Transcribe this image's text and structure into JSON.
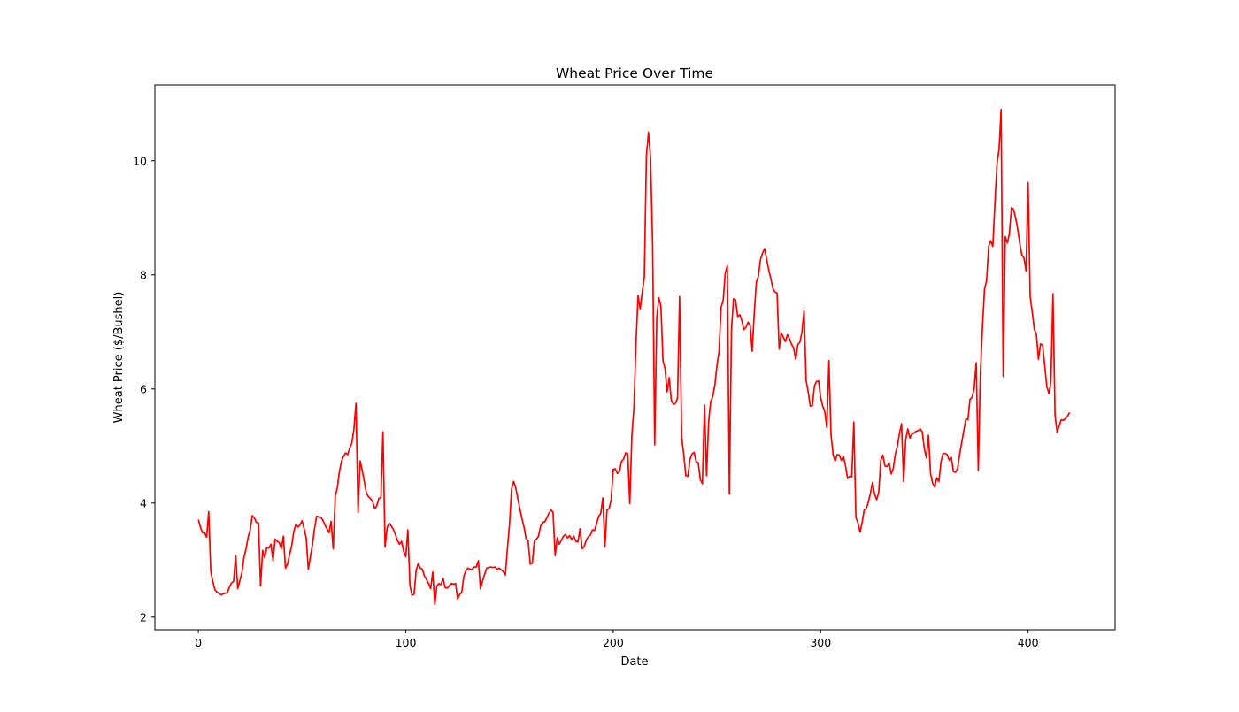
{
  "chart_data": {
    "type": "line",
    "title": "Wheat Price Over Time",
    "xlabel": "Date",
    "ylabel": "Wheat Price ($/Bushel)",
    "xlim": [
      -20.95,
      441.95
    ],
    "ylim": [
      1.78,
      11.33
    ],
    "xticks": [
      0,
      100,
      200,
      300,
      400
    ],
    "yticks": [
      2,
      4,
      6,
      8,
      10
    ],
    "grid": false,
    "legend": "none",
    "series": [
      {
        "color": "#ff0000",
        "x": [
          0,
          1,
          2,
          3,
          4,
          5,
          6,
          7,
          8,
          9,
          10,
          11,
          12,
          13,
          14,
          15,
          16,
          17,
          18,
          19,
          20,
          21,
          22,
          23,
          24,
          25,
          26,
          27,
          28,
          29,
          30,
          31,
          32,
          33,
          34,
          35,
          36,
          37,
          38,
          39,
          40,
          41,
          42,
          43,
          44,
          45,
          46,
          47,
          48,
          49,
          50,
          51,
          52,
          53,
          54,
          55,
          56,
          57,
          58,
          59,
          60,
          61,
          62,
          63,
          64,
          65,
          66,
          67,
          68,
          69,
          70,
          71,
          72,
          73,
          74,
          75,
          76,
          77,
          78,
          79,
          80,
          81,
          82,
          83,
          84,
          85,
          86,
          87,
          88,
          89,
          90,
          91,
          92,
          93,
          94,
          95,
          96,
          97,
          98,
          99,
          100,
          101,
          102,
          103,
          104,
          105,
          106,
          107,
          108,
          109,
          110,
          111,
          112,
          113,
          114,
          115,
          116,
          117,
          118,
          119,
          120,
          121,
          122,
          123,
          124,
          125,
          126,
          127,
          128,
          129,
          130,
          131,
          132,
          133,
          134,
          135,
          136,
          137,
          138,
          139,
          140,
          141,
          142,
          143,
          144,
          145,
          146,
          147,
          148,
          149,
          150,
          151,
          152,
          153,
          154,
          155,
          156,
          157,
          158,
          159,
          160,
          161,
          162,
          163,
          164,
          165,
          166,
          167,
          168,
          169,
          170,
          171,
          172,
          173,
          174,
          175,
          176,
          177,
          178,
          179,
          180,
          181,
          182,
          183,
          184,
          185,
          186,
          187,
          188,
          189,
          190,
          191,
          192,
          193,
          194,
          195,
          196,
          197,
          198,
          199,
          200,
          201,
          202,
          203,
          204,
          205,
          206,
          207,
          208,
          209,
          210,
          211,
          212,
          213,
          214,
          215,
          216,
          217,
          218,
          219,
          220,
          221,
          222,
          223,
          224,
          225,
          226,
          227,
          228,
          229,
          230,
          231,
          232,
          233,
          234,
          235,
          236,
          237,
          238,
          239,
          240,
          241,
          242,
          243,
          244,
          245,
          246,
          247,
          248,
          249,
          250,
          251,
          252,
          253,
          254,
          255,
          256,
          257,
          258,
          259,
          260,
          261,
          262,
          263,
          264,
          265,
          266,
          267,
          268,
          269,
          270,
          271,
          272,
          273,
          274,
          275,
          276,
          277,
          278,
          279,
          280,
          281,
          282,
          283,
          284,
          285,
          286,
          287,
          288,
          289,
          290,
          291,
          292,
          293,
          294,
          295,
          296,
          297,
          298,
          299,
          300,
          301,
          302,
          303,
          304,
          305,
          306,
          307,
          308,
          309,
          310,
          311,
          312,
          313,
          314,
          315,
          316,
          317,
          318,
          319,
          320,
          321,
          322,
          323,
          324,
          325,
          326,
          327,
          328,
          329,
          330,
          331,
          332,
          333,
          334,
          335,
          336,
          337,
          338,
          339,
          340,
          341,
          342,
          343,
          344,
          345,
          346,
          347,
          348,
          349,
          350,
          351,
          352,
          353,
          354,
          355,
          356,
          357,
          358,
          359,
          360,
          361,
          362,
          363,
          364,
          365,
          366,
          367,
          368,
          369,
          370,
          371,
          372,
          373,
          374,
          375,
          376,
          377,
          378,
          379,
          380,
          381,
          382,
          383,
          384,
          385,
          386,
          387,
          388,
          389,
          390,
          391,
          392,
          393,
          394,
          395,
          396,
          397,
          398,
          399,
          400,
          401,
          402,
          403,
          404,
          405,
          406,
          407,
          408,
          409,
          410,
          411,
          412,
          413,
          414,
          415,
          416,
          417,
          418,
          419,
          420
        ],
        "y": [
          3.71,
          3.58,
          3.48,
          3.49,
          3.4,
          3.85,
          2.8,
          2.62,
          2.48,
          2.44,
          2.42,
          2.39,
          2.41,
          2.42,
          2.43,
          2.53,
          2.6,
          2.63,
          3.08,
          2.5,
          2.64,
          2.78,
          3.05,
          3.2,
          3.4,
          3.53,
          3.78,
          3.74,
          3.66,
          3.65,
          2.55,
          3.17,
          3.05,
          3.22,
          3.21,
          3.28,
          2.99,
          3.37,
          3.33,
          3.31,
          3.2,
          3.42,
          2.86,
          2.93,
          3.1,
          3.25,
          3.5,
          3.63,
          3.58,
          3.62,
          3.69,
          3.55,
          3.39,
          2.84,
          3.06,
          3.27,
          3.55,
          3.77,
          3.76,
          3.75,
          3.7,
          3.62,
          3.55,
          3.48,
          3.68,
          3.2,
          4.12,
          4.27,
          4.55,
          4.73,
          4.82,
          4.88,
          4.85,
          4.97,
          5.05,
          5.3,
          5.75,
          3.84,
          4.74,
          4.57,
          4.38,
          4.18,
          4.11,
          4.08,
          4.03,
          3.9,
          3.95,
          4.08,
          4.1,
          5.25,
          3.23,
          3.57,
          3.65,
          3.6,
          3.54,
          3.45,
          3.34,
          3.28,
          3.33,
          3.15,
          3.06,
          3.53,
          2.56,
          2.39,
          2.4,
          2.82,
          2.94,
          2.86,
          2.84,
          2.72,
          2.66,
          2.59,
          2.5,
          2.79,
          2.22,
          2.55,
          2.59,
          2.57,
          2.68,
          2.52,
          2.51,
          2.55,
          2.59,
          2.58,
          2.59,
          2.32,
          2.4,
          2.44,
          2.72,
          2.82,
          2.86,
          2.84,
          2.84,
          2.88,
          2.88,
          2.99,
          2.5,
          2.63,
          2.75,
          2.86,
          2.87,
          2.88,
          2.87,
          2.88,
          2.84,
          2.86,
          2.83,
          2.8,
          2.74,
          3.2,
          3.62,
          4.25,
          4.38,
          4.27,
          4.08,
          3.9,
          3.73,
          3.58,
          3.38,
          3.34,
          2.93,
          2.95,
          3.34,
          3.37,
          3.42,
          3.6,
          3.67,
          3.67,
          3.74,
          3.82,
          3.88,
          3.84,
          3.08,
          3.39,
          3.28,
          3.35,
          3.42,
          3.45,
          3.39,
          3.43,
          3.36,
          3.42,
          3.33,
          3.32,
          3.55,
          3.2,
          3.24,
          3.35,
          3.41,
          3.44,
          3.53,
          3.52,
          3.64,
          3.77,
          3.82,
          4.09,
          3.23,
          3.88,
          3.9,
          4.05,
          4.59,
          4.6,
          4.52,
          4.55,
          4.73,
          4.77,
          4.88,
          4.87,
          3.99,
          5.19,
          5.67,
          6.82,
          7.64,
          7.4,
          7.7,
          7.96,
          10.08,
          10.5,
          10.05,
          8.52,
          5.02,
          7.26,
          7.6,
          7.45,
          6.5,
          6.35,
          5.95,
          6.2,
          5.8,
          5.73,
          5.75,
          5.84,
          7.62,
          5.16,
          4.85,
          4.48,
          4.47,
          4.77,
          4.86,
          4.89,
          4.72,
          4.71,
          4.41,
          4.34,
          5.72,
          4.48,
          5.43,
          5.78,
          5.87,
          6.07,
          6.41,
          6.65,
          7.43,
          7.55,
          8.03,
          8.16,
          4.16,
          7.03,
          7.58,
          7.56,
          7.27,
          7.3,
          7.2,
          7.04,
          7.08,
          7.17,
          7.12,
          6.66,
          7.34,
          7.87,
          7.98,
          8.27,
          8.38,
          8.46,
          8.27,
          8.08,
          7.93,
          7.76,
          7.7,
          7.68,
          6.7,
          6.98,
          6.91,
          6.83,
          6.95,
          6.88,
          6.78,
          6.72,
          6.52,
          6.78,
          6.82,
          7.0,
          7.37,
          6.15,
          5.95,
          5.7,
          5.71,
          6.05,
          6.13,
          6.14,
          5.85,
          5.7,
          5.6,
          5.32,
          6.5,
          5.2,
          4.85,
          4.74,
          4.85,
          4.84,
          4.75,
          4.82,
          4.65,
          4.43,
          4.47,
          4.46,
          5.42,
          3.75,
          3.65,
          3.49,
          3.66,
          3.88,
          3.9,
          4.02,
          4.17,
          4.36,
          4.16,
          4.06,
          4.19,
          4.75,
          4.84,
          4.65,
          4.64,
          4.71,
          4.51,
          4.6,
          4.86,
          5.0,
          5.22,
          5.39,
          4.38,
          5.11,
          5.3,
          5.14,
          5.21,
          5.23,
          5.26,
          5.27,
          5.3,
          5.25,
          4.95,
          4.79,
          5.19,
          4.51,
          4.35,
          4.28,
          4.44,
          4.38,
          4.72,
          4.87,
          4.87,
          4.85,
          4.75,
          4.8,
          4.55,
          4.54,
          4.6,
          4.85,
          5.06,
          5.27,
          5.47,
          5.46,
          5.82,
          5.85,
          6.01,
          6.46,
          4.57,
          6.28,
          7.08,
          7.75,
          7.9,
          8.5,
          8.6,
          8.5,
          9.25,
          9.94,
          10.2,
          10.9,
          6.22,
          8.67,
          8.56,
          8.72,
          9.18,
          9.15,
          9.0,
          8.8,
          8.55,
          8.35,
          8.3,
          8.07,
          9.62,
          7.62,
          7.35,
          7.05,
          6.96,
          6.52,
          6.79,
          6.77,
          6.42,
          6.05,
          5.92,
          6.12,
          7.67,
          5.54,
          5.24,
          5.36,
          5.46,
          5.45,
          5.48,
          5.52,
          5.59
        ]
      }
    ]
  }
}
